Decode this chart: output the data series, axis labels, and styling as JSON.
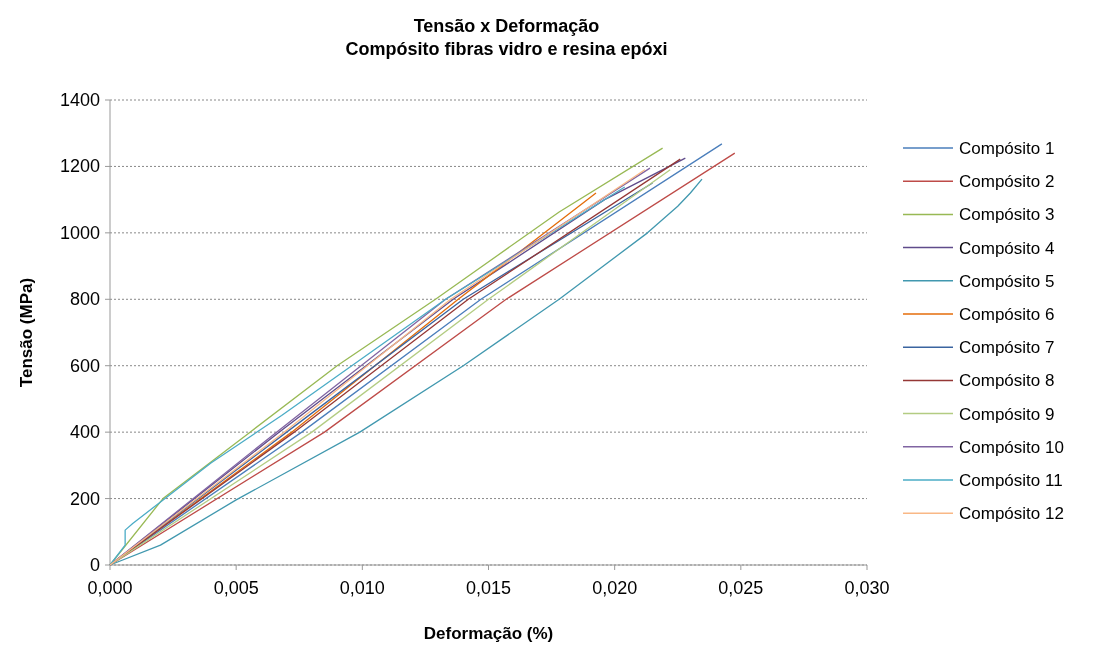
{
  "chart_data": {
    "type": "line",
    "title": "Tensão x Deformação\nCompósito fibras vidro e resina epóxi",
    "xlabel": "Deformação (%)",
    "ylabel": "Tensão (MPa)",
    "xlim": [
      0,
      0.03
    ],
    "xticks": [
      {
        "value": 0,
        "label": "0,000"
      },
      {
        "value": 0.005,
        "label": "0,005"
      },
      {
        "value": 0.01,
        "label": "0,010"
      },
      {
        "value": 0.015,
        "label": "0,015"
      },
      {
        "value": 0.02,
        "label": "0,020"
      },
      {
        "value": 0.025,
        "label": "0,025"
      },
      {
        "value": 0.03,
        "label": "0,030"
      }
    ],
    "ylim": [
      0,
      1400
    ],
    "yticks": [
      0,
      200,
      400,
      600,
      800,
      1000,
      1200,
      1400
    ],
    "grid": "y",
    "legend": "right",
    "marker": "none",
    "line_style": "solid",
    "series": [
      {
        "name": "Compósito 1",
        "color": "#4a7ebb",
        "x": [
          0,
          0.0076,
          0.0147,
          0.02425
        ],
        "values": [
          0,
          400,
          800,
          1268
        ]
      },
      {
        "name": "Compósito 2",
        "color": "#be4b48",
        "x": [
          0,
          0.0085,
          0.0157,
          0.02476
        ],
        "values": [
          0,
          400,
          800,
          1240
        ]
      },
      {
        "name": "Compósito 3",
        "color": "#98b954",
        "x": [
          0,
          0.0021,
          0.00555,
          0.009,
          0.0129,
          0.0178,
          0.0219
        ],
        "values": [
          0,
          200,
          400,
          600,
          800,
          1063,
          1255
        ]
      },
      {
        "name": "Compósito 4",
        "color": "#5f4b8b",
        "x": [
          0,
          0.0067,
          0.0136,
          0.0196,
          0.0228
        ],
        "values": [
          0,
          400,
          800,
          1100,
          1225
        ]
      },
      {
        "name": "Compósito 5",
        "color": "#4198af",
        "x": [
          0,
          0.002,
          0.005,
          0.0099,
          0.014,
          0.0178,
          0.0213,
          0.0225,
          0.023,
          0.02346
        ],
        "values": [
          0,
          60,
          196,
          400,
          600,
          800,
          1000,
          1080,
          1120,
          1162
        ]
      },
      {
        "name": "Compósito 6",
        "color": "#e46c0a",
        "x": [
          0,
          0.0072,
          0.0138,
          0.01926
        ],
        "values": [
          0,
          400,
          800,
          1120
        ]
      },
      {
        "name": "Compósito 7",
        "color": "#3a64a0",
        "x": [
          0,
          0.007,
          0.014,
          0.0215
        ],
        "values": [
          0,
          400,
          800,
          1150
        ]
      },
      {
        "name": "Compósito 8",
        "color": "#953735",
        "x": [
          0,
          0.0073,
          0.0142,
          0.0226
        ],
        "values": [
          0,
          400,
          800,
          1222
        ]
      },
      {
        "name": "Compósito 9",
        "color": "#b3cc82",
        "x": [
          0,
          0.008,
          0.015,
          0.0222
        ],
        "values": [
          0,
          400,
          800,
          1190
        ]
      },
      {
        "name": "Compósito 10",
        "color": "#8064a2",
        "x": [
          0,
          0.0066,
          0.0133,
          0.0214
        ],
        "values": [
          0,
          400,
          800,
          1195
        ]
      },
      {
        "name": "Compósito 11",
        "color": "#4bacc6",
        "x": [
          0,
          0.0006,
          0.0006,
          0.0009,
          0.004,
          0.0068,
          0.0133,
          0.0204
        ],
        "values": [
          0,
          60,
          105,
          125,
          307,
          450,
          800,
          1138
        ]
      },
      {
        "name": "Compósito 12",
        "color": "#f9b886",
        "x": [
          0,
          0.0069,
          0.0135,
          0.0212
        ],
        "values": [
          0,
          400,
          800,
          1190
        ]
      }
    ]
  }
}
